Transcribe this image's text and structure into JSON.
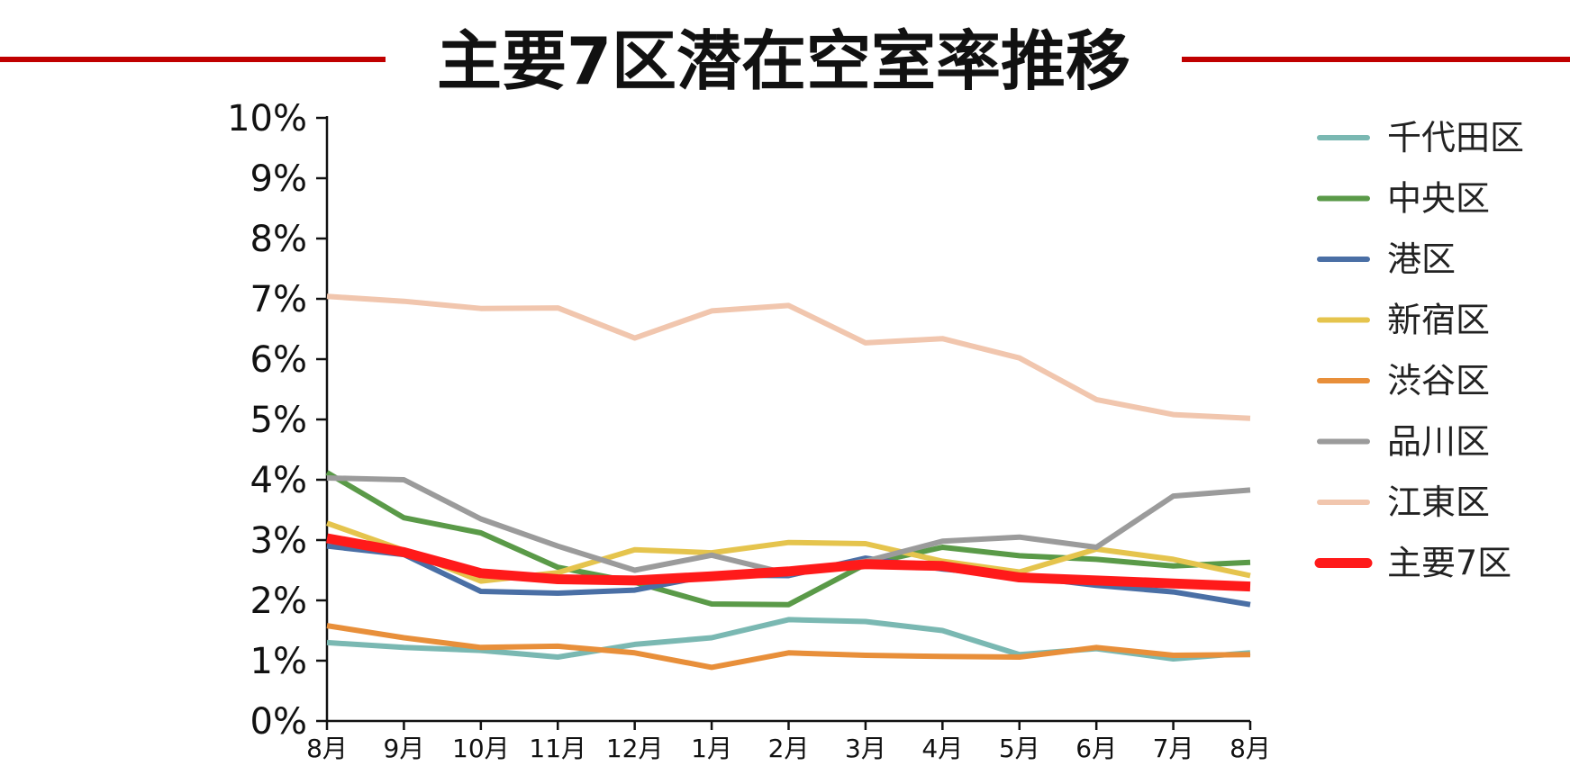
{
  "chart_data": {
    "type": "line",
    "title": "主要7区潜在空室率推移",
    "xlabel": "",
    "ylabel": "",
    "categories": [
      "8月",
      "9月",
      "10月",
      "11月",
      "12月",
      "1月",
      "2月",
      "3月",
      "4月",
      "5月",
      "6月",
      "7月",
      "8月"
    ],
    "y_tick_labels": [
      "0%",
      "1%",
      "2%",
      "3%",
      "4%",
      "5%",
      "6%",
      "7%",
      "8%",
      "9%",
      "10%"
    ],
    "ylim": [
      0,
      10
    ],
    "y_unit": "%",
    "grid": false,
    "legend_position": "right",
    "series": [
      {
        "name": "千代田区",
        "color": "#7ab8b2",
        "values": [
          1.3,
          1.22,
          1.17,
          1.06,
          1.27,
          1.38,
          1.68,
          1.65,
          1.5,
          1.1,
          1.2,
          1.03,
          1.13
        ]
      },
      {
        "name": "中央区",
        "color": "#5a9a48",
        "values": [
          4.12,
          3.37,
          3.12,
          2.55,
          2.3,
          1.94,
          1.93,
          2.6,
          2.88,
          2.74,
          2.68,
          2.57,
          2.63
        ]
      },
      {
        "name": "港区",
        "color": "#4a6fa5",
        "values": [
          2.9,
          2.76,
          2.15,
          2.12,
          2.17,
          2.42,
          2.41,
          2.7,
          2.52,
          2.4,
          2.25,
          2.14,
          1.93
        ]
      },
      {
        "name": "新宿区",
        "color": "#e5c44d",
        "values": [
          3.28,
          2.83,
          2.32,
          2.46,
          2.84,
          2.79,
          2.96,
          2.94,
          2.65,
          2.47,
          2.85,
          2.68,
          2.41
        ]
      },
      {
        "name": "渋谷区",
        "color": "#e88f3a",
        "values": [
          1.58,
          1.38,
          1.22,
          1.24,
          1.13,
          0.89,
          1.13,
          1.09,
          1.07,
          1.06,
          1.22,
          1.09,
          1.1
        ]
      },
      {
        "name": "品川区",
        "color": "#9b9b9b",
        "values": [
          4.03,
          4.0,
          3.35,
          2.9,
          2.5,
          2.75,
          2.44,
          2.65,
          2.98,
          3.05,
          2.88,
          3.73,
          3.83
        ]
      },
      {
        "name": "江東区",
        "color": "#f1c6ae",
        "values": [
          7.04,
          6.96,
          6.84,
          6.85,
          6.35,
          6.8,
          6.89,
          6.27,
          6.34,
          6.02,
          5.33,
          5.08,
          5.02
        ]
      },
      {
        "name": "主要7区",
        "color": "#ff1a1a",
        "values": [
          3.03,
          2.8,
          2.45,
          2.35,
          2.33,
          2.4,
          2.48,
          2.6,
          2.57,
          2.38,
          2.33,
          2.28,
          2.23
        ]
      }
    ]
  }
}
